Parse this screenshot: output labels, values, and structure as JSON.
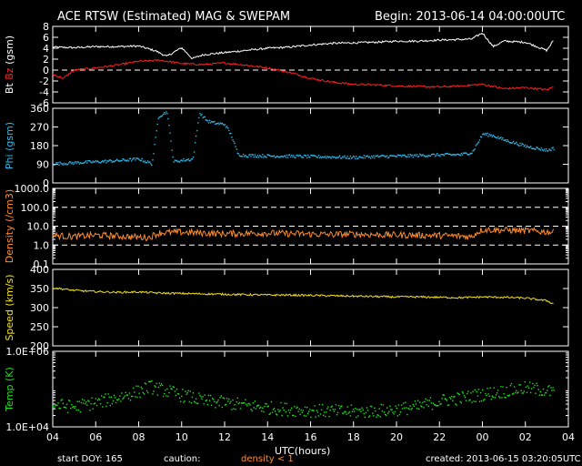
{
  "header": {
    "title": "ACE RTSW (Estimated) MAG & SWEPAM",
    "begin": "Begin: 2013-06-14 04:00:00UTC"
  },
  "footer": {
    "start_doy": "start DOY: 165",
    "caution_label": "caution:",
    "caution_value": "density < 1",
    "created": "created: 2013-06-15 03:20:05UTC"
  },
  "colors": {
    "bt": "#ffffff",
    "bz": "#ff2020",
    "phi": "#30b8e8",
    "density": "#ff8c2a",
    "speed": "#f0e020",
    "temp": "#20e020"
  },
  "chart_data": [
    {
      "type": "line",
      "title": "",
      "ylabel_parts": [
        "Bt",
        "Bz",
        "(gsm)"
      ],
      "ylim": [
        -6,
        8
      ],
      "yticks": [
        "8",
        "6",
        "4",
        "2",
        "0",
        "-2",
        "-4",
        "-6"
      ],
      "hline_dashed": 0,
      "series": [
        {
          "name": "Bt",
          "x": [
            4,
            5,
            6,
            7,
            8,
            8.8,
            9.3,
            10,
            10.5,
            11,
            12,
            13,
            14,
            15,
            16,
            17,
            18,
            19,
            20,
            21,
            22,
            23,
            23.5,
            24,
            24.5,
            25,
            26,
            27,
            27.3
          ],
          "y": [
            4.2,
            4.1,
            4.3,
            4.3,
            4.4,
            3.5,
            2.5,
            4.1,
            2.1,
            2.8,
            3.2,
            3.6,
            4.0,
            4.2,
            4.6,
            4.9,
            5.0,
            5.1,
            5.3,
            5.3,
            5.5,
            5.6,
            5.7,
            6.8,
            4.3,
            5.3,
            5.1,
            3.6,
            5.4
          ]
        },
        {
          "name": "Bz",
          "x": [
            4,
            4.5,
            5,
            6,
            7,
            8,
            9,
            10,
            11,
            12,
            13,
            14,
            15,
            16,
            17,
            18,
            19,
            20,
            21,
            22,
            23,
            24,
            25,
            26,
            27,
            27.3
          ],
          "y": [
            -0.8,
            -1.5,
            0.0,
            0.4,
            0.9,
            1.6,
            1.8,
            1.2,
            1.0,
            1.3,
            0.9,
            0.4,
            -0.4,
            -1.5,
            -2.2,
            -2.6,
            -2.7,
            -2.9,
            -3.0,
            -3.1,
            -2.9,
            -2.6,
            -3.4,
            -3.2,
            -3.6,
            -3.1
          ]
        }
      ]
    },
    {
      "type": "scatter",
      "title": "",
      "ylabel": "Phi (gsm)",
      "ylim": [
        0,
        360
      ],
      "yticks": [
        "360",
        "270",
        "180",
        "90",
        "0"
      ],
      "series": [
        {
          "name": "Phi",
          "x": [
            4,
            5,
            6,
            7,
            8,
            8.6,
            8.9,
            9.3,
            9.6,
            10,
            10.5,
            10.8,
            11.2,
            11.6,
            12,
            12.3,
            12.6,
            13,
            14,
            15,
            16,
            17,
            18,
            19,
            20,
            21,
            22,
            23,
            23.5,
            24,
            24.5,
            25,
            26,
            27,
            27.3
          ],
          "y": [
            95,
            100,
            105,
            110,
            118,
            95,
            325,
            345,
            105,
            112,
            118,
            340,
            300,
            290,
            285,
            230,
            140,
            135,
            133,
            132,
            130,
            128,
            126,
            130,
            132,
            135,
            138,
            140,
            150,
            240,
            230,
            210,
            180,
            160,
            170
          ]
        }
      ]
    },
    {
      "type": "line",
      "title": "",
      "ylabel": "Density (/cm3)",
      "yscale": "log",
      "ylim": [
        0.1,
        1000
      ],
      "yticks": [
        "1000.0",
        "100.0",
        "10.0",
        "1.0",
        "0.1"
      ],
      "hlines_dashed": [
        100,
        10,
        1
      ],
      "series": [
        {
          "name": "Density",
          "x": [
            4,
            5,
            6,
            7,
            8,
            8.5,
            9,
            10,
            11,
            12,
            13,
            14,
            15,
            16,
            17,
            18,
            19,
            20,
            21,
            22,
            23,
            23.5,
            24,
            25,
            26,
            27,
            27.3
          ],
          "y": [
            3.2,
            2.8,
            3.3,
            3.0,
            2.6,
            2.5,
            4.5,
            4.8,
            4.3,
            4.0,
            4.2,
            4.3,
            4.0,
            3.8,
            3.6,
            3.8,
            3.5,
            3.4,
            3.3,
            3.2,
            3.0,
            2.7,
            6.5,
            6.2,
            5.8,
            5.0,
            4.8
          ]
        }
      ]
    },
    {
      "type": "line",
      "title": "",
      "ylabel": "Speed (km/s)",
      "ylim": [
        200,
        400
      ],
      "yticks": [
        "400",
        "350",
        "300",
        "250",
        "200"
      ],
      "series": [
        {
          "name": "Speed",
          "x": [
            4,
            5,
            6,
            7,
            8,
            9,
            10,
            11,
            12,
            13,
            14,
            15,
            16,
            17,
            18,
            19,
            20,
            21,
            22,
            23,
            24,
            25,
            26,
            27,
            27.3
          ],
          "y": [
            352,
            345,
            342,
            340,
            341,
            338,
            337,
            336,
            335,
            334,
            333,
            333,
            332,
            331,
            330,
            329,
            328,
            328,
            327,
            326,
            328,
            327,
            325,
            318,
            310
          ]
        }
      ]
    },
    {
      "type": "scatter",
      "title": "",
      "ylabel": "Temp (K)",
      "yscale": "log",
      "ylim": [
        10000,
        1000000
      ],
      "yticks": [
        "1.0E+06",
        "1.0E+04"
      ],
      "series": [
        {
          "name": "Temp",
          "x": [
            4,
            5,
            6,
            7,
            8,
            8.5,
            9,
            10,
            11,
            12,
            13,
            14,
            15,
            16,
            17,
            18,
            19,
            20,
            21,
            22,
            23,
            24,
            25,
            26,
            27,
            27.3
          ],
          "y": [
            40000,
            35000,
            45000,
            60000,
            90000,
            120000,
            100000,
            70000,
            50000,
            45000,
            38000,
            33000,
            30000,
            28000,
            27000,
            26000,
            27000,
            30000,
            35000,
            50000,
            60000,
            75000,
            90000,
            110000,
            95000,
            80000
          ]
        }
      ]
    }
  ],
  "xaxis": {
    "label": "UTC(hours)",
    "range": [
      4,
      28
    ],
    "ticks": [
      "04",
      "06",
      "08",
      "10",
      "12",
      "14",
      "16",
      "18",
      "20",
      "22",
      "00",
      "02",
      "04"
    ]
  }
}
